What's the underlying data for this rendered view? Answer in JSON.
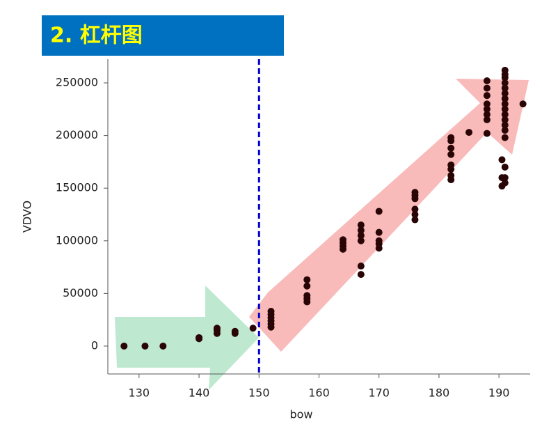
{
  "chart_data": {
    "type": "scatter",
    "title": "2. 杠杆图",
    "xlabel": "bow",
    "ylabel": "VDVO",
    "color": "#2a0505",
    "vline": 150,
    "vline_color": "#0000cc",
    "xlim": [
      124.8,
      195.2
    ],
    "ylim": [
      -26500,
      272500
    ],
    "xticks": [
      130,
      140,
      150,
      160,
      170,
      180,
      190
    ],
    "yticks": [
      0,
      50000,
      100000,
      150000,
      200000,
      250000
    ],
    "x": [
      127.5,
      131,
      134,
      140,
      140,
      143,
      143,
      143,
      146,
      146,
      149,
      152,
      152,
      152,
      152,
      152,
      152,
      158,
      158,
      158,
      158,
      158,
      164,
      164,
      164,
      164,
      167,
      167,
      167,
      167,
      167,
      167,
      170,
      170,
      170,
      170,
      170,
      176,
      176,
      176,
      176,
      176,
      176,
      182,
      182,
      182,
      182,
      182,
      182,
      182,
      182,
      185,
      188,
      188,
      188,
      188,
      188,
      188,
      188,
      188,
      191,
      191,
      191,
      191,
      191,
      191,
      191,
      191,
      191,
      191,
      191,
      191,
      191,
      191,
      190.5,
      191,
      190.5,
      191,
      190.5,
      191,
      194
    ],
    "y": [
      0,
      0,
      0,
      7000,
      8000,
      12000,
      15000,
      17000,
      12000,
      14000,
      17000,
      18000,
      21000,
      24000,
      27000,
      30000,
      33000,
      42000,
      45000,
      48000,
      57000,
      63000,
      92000,
      95000,
      98000,
      101000,
      68000,
      76000,
      100000,
      105000,
      110000,
      115000,
      93000,
      97000,
      100000,
      108000,
      128000,
      120000,
      125000,
      130000,
      140000,
      143000,
      146000,
      158000,
      162000,
      168000,
      172000,
      182000,
      188000,
      195000,
      198000,
      203000,
      202000,
      215000,
      220000,
      225000,
      230000,
      238000,
      245000,
      252000,
      198000,
      205000,
      210000,
      215000,
      220000,
      225000,
      230000,
      235000,
      240000,
      245000,
      250000,
      255000,
      258000,
      262000,
      152000,
      155000,
      160000,
      160000,
      177000,
      170000,
      230000
    ]
  }
}
